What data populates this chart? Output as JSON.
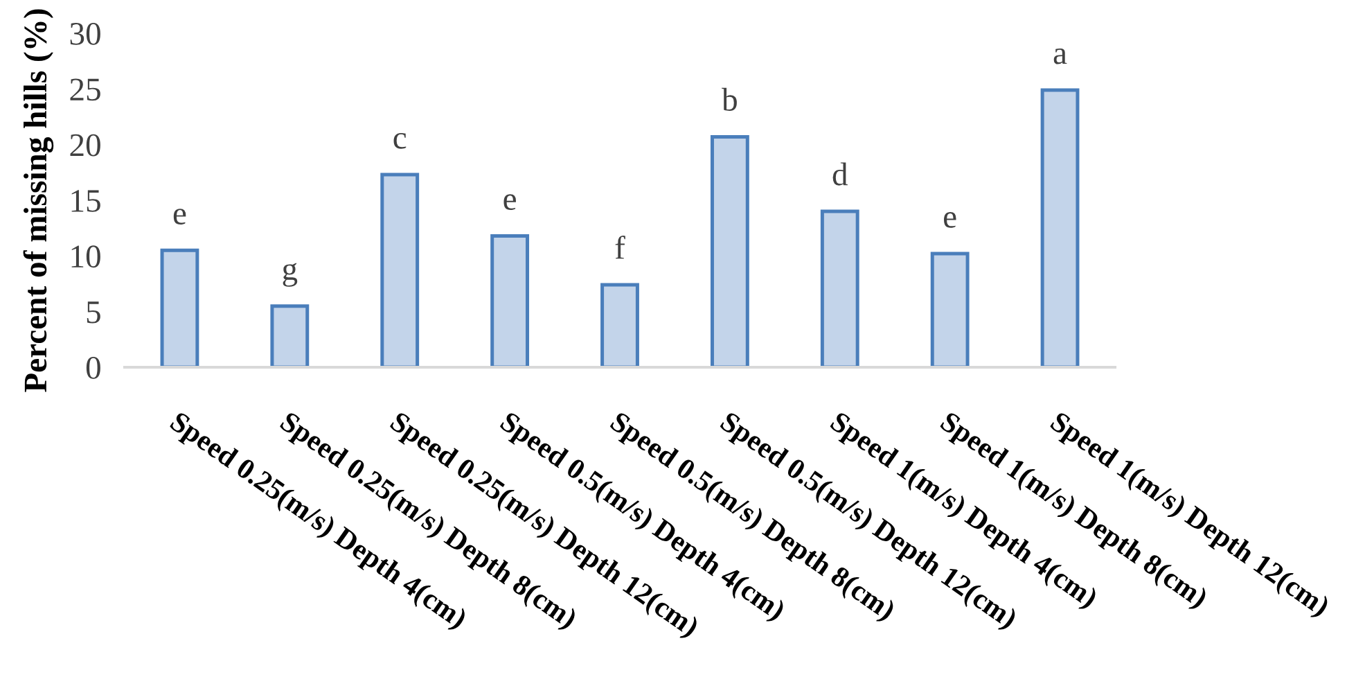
{
  "chart_data": {
    "type": "bar",
    "ylabel": "Percent of missing hills (%)",
    "categories": [
      "Speed 0.25(m/s) Depth 4(cm)",
      "Speed 0.25(m/s) Depth 8(cm)",
      "Speed 0.25(m/s) Depth 12(cm)",
      "Speed 0.5(m/s) Depth 4(cm)",
      "Speed 0.5(m/s) Depth 8(cm)",
      "Speed 0.5(m/s) Depth 12(cm)",
      "Speed 1(m/s) Depth 4(cm)",
      "Speed 1(m/s) Depth 8(cm)",
      "Speed 1(m/s) Depth 12(cm)"
    ],
    "values": [
      10.5,
      5.5,
      17.3,
      11.8,
      7.4,
      20.7,
      14.0,
      10.2,
      24.9
    ],
    "value_labels": [
      "e",
      "g",
      "c",
      "e",
      "f",
      "b",
      "d",
      "e",
      "a"
    ],
    "color": "#c3d4ea",
    "ylim": [
      0,
      30
    ],
    "yticks": [
      0,
      5,
      10,
      15,
      20,
      25,
      30
    ],
    "grid": false,
    "legend": false
  }
}
